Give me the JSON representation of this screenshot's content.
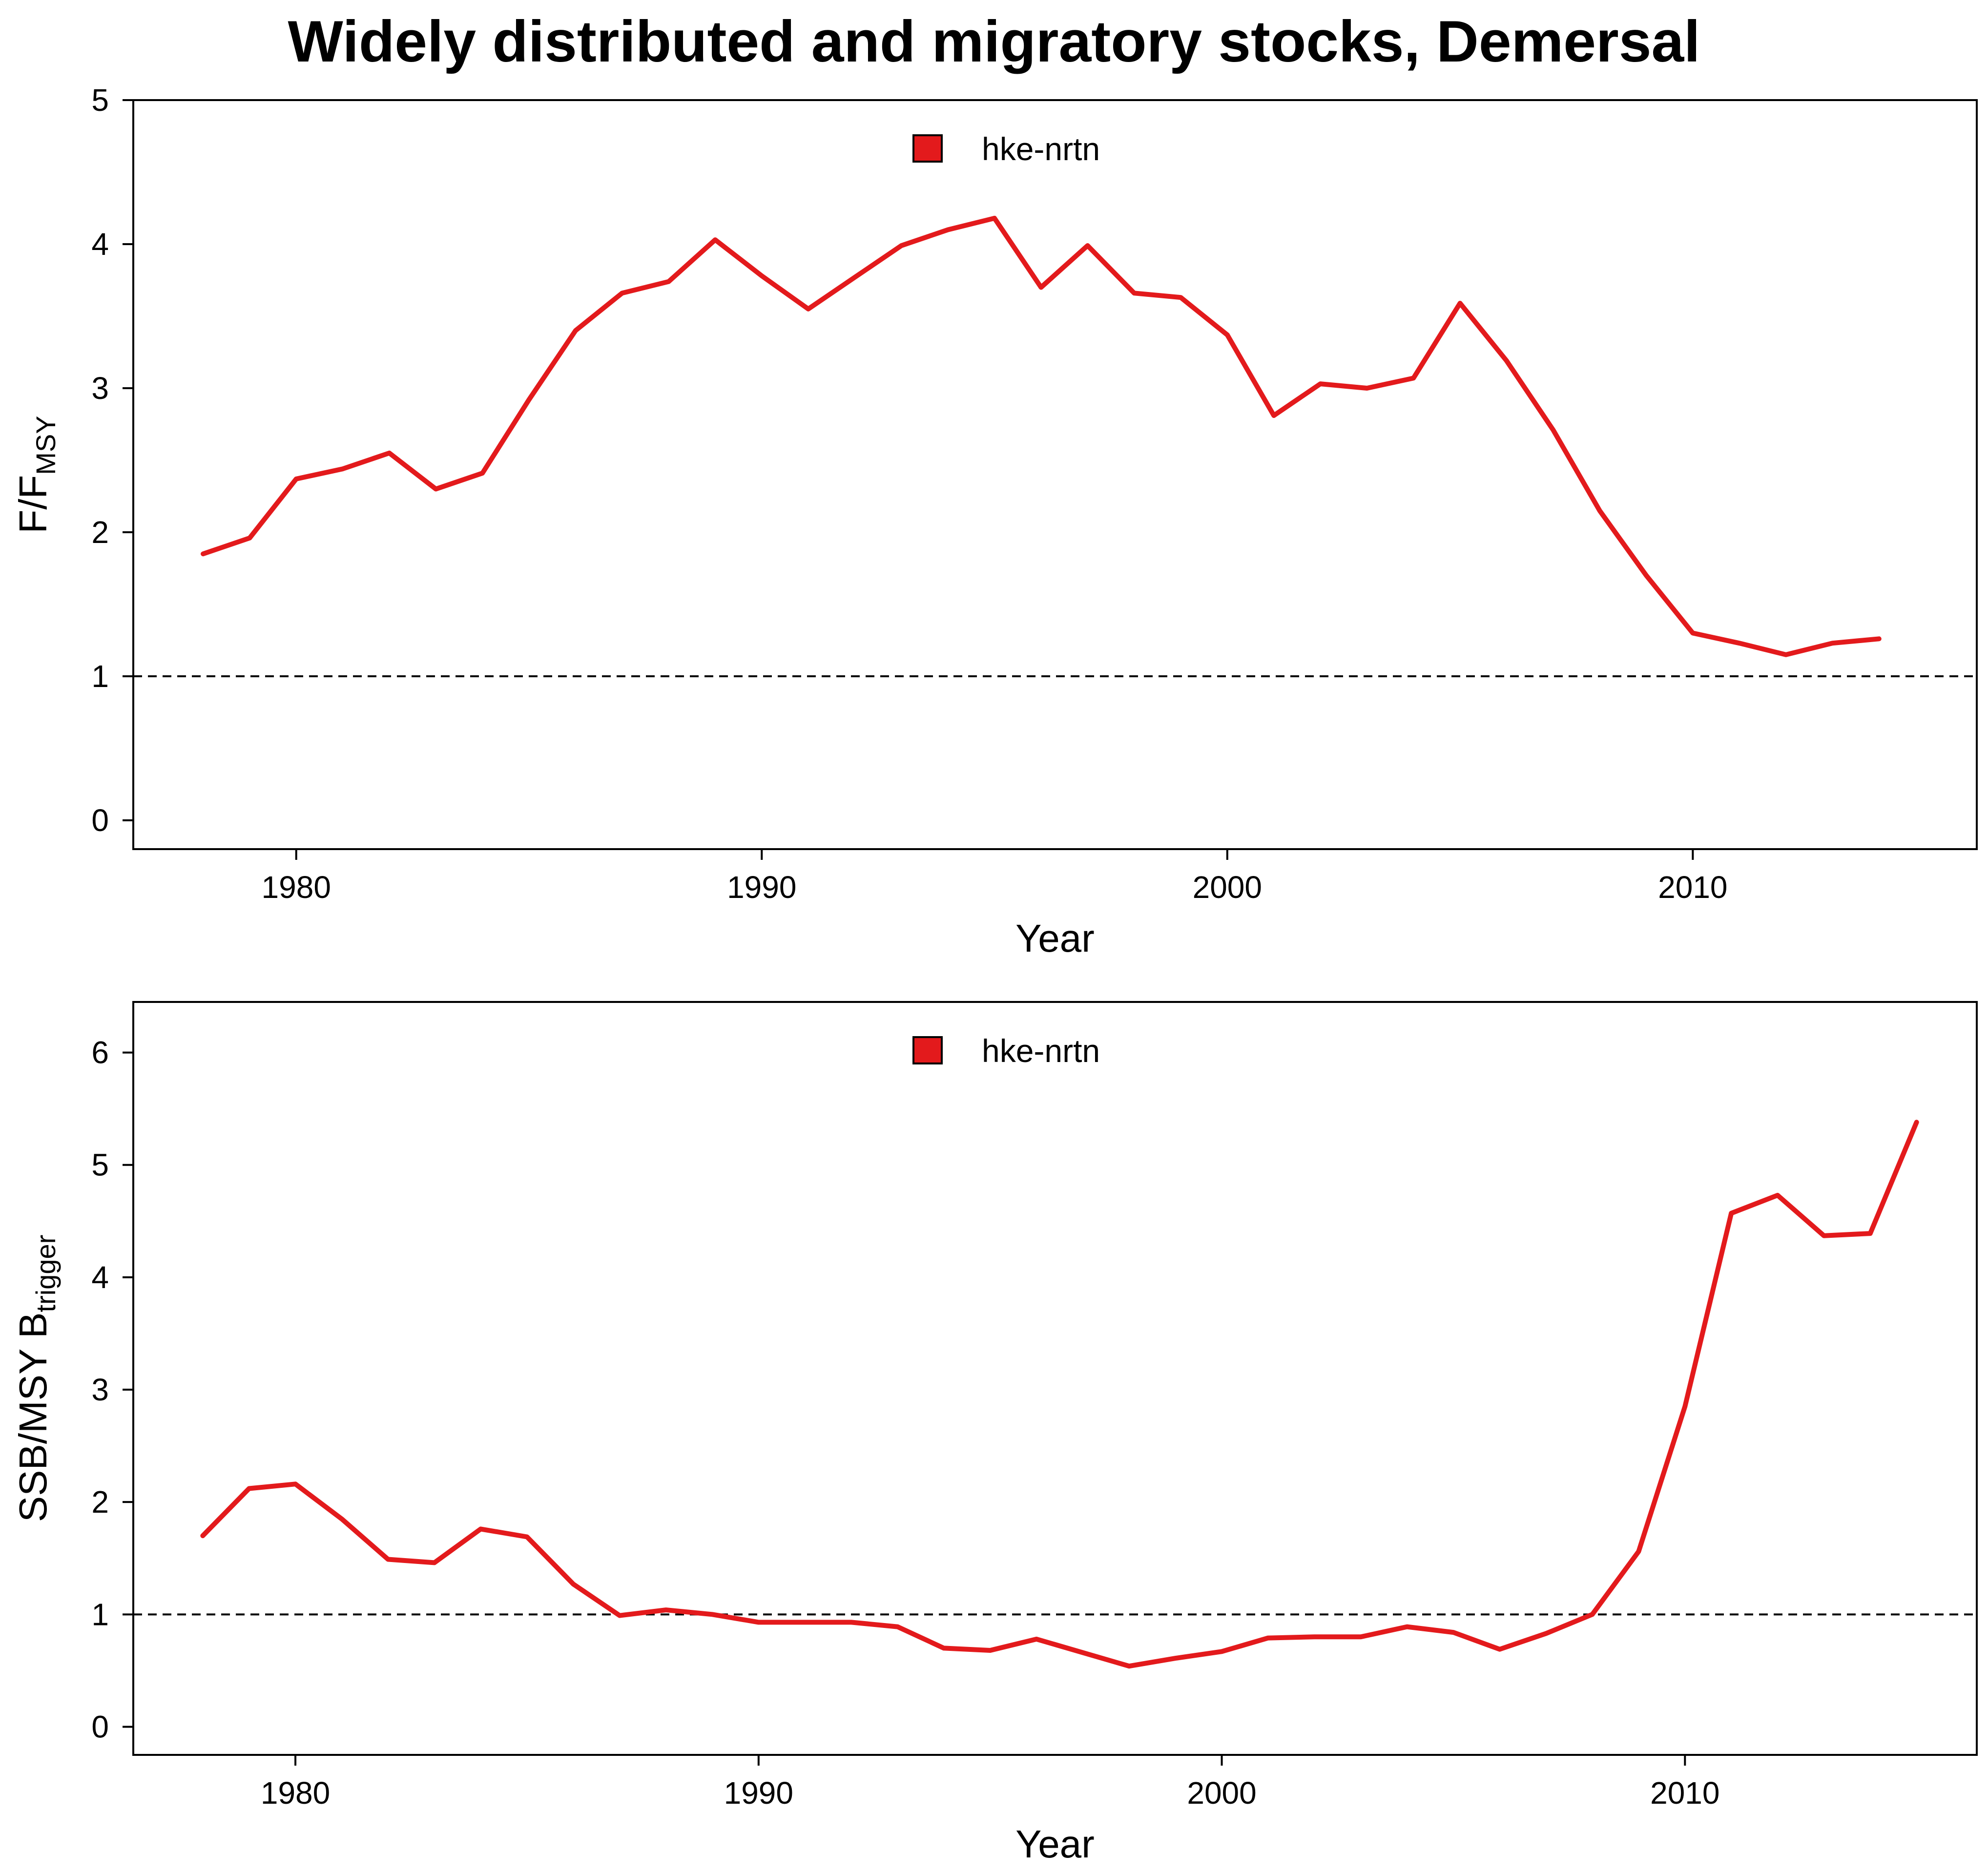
{
  "title": "Widely distributed and migratory stocks, Demersal",
  "colors": {
    "series": "#e31a1c",
    "reference_line": "#000000",
    "frame": "#000000"
  },
  "chart_data": [
    {
      "type": "line",
      "xlabel": "Year",
      "ylabel": {
        "main": "F/F",
        "sub": "MSY"
      },
      "xlim": [
        1976.5,
        2016.1
      ],
      "ylim": [
        -0.2,
        5
      ],
      "xticks": [
        1980,
        1990,
        2000,
        2010
      ],
      "yticks": [
        0,
        1,
        2,
        3,
        4,
        5
      ],
      "reference_line": {
        "y": 1,
        "style": "dashed"
      },
      "legend": {
        "position": "top-center"
      },
      "series": [
        {
          "name": "hke-nrtn",
          "color": "#e31a1c",
          "x": [
            1978,
            1979,
            1980,
            1981,
            1982,
            1983,
            1984,
            1985,
            1986,
            1987,
            1988,
            1989,
            1990,
            1991,
            1992,
            1993,
            1994,
            1995,
            1996,
            1997,
            1998,
            1999,
            2000,
            2001,
            2002,
            2003,
            2004,
            2005,
            2006,
            2007,
            2008,
            2009,
            2010,
            2011,
            2012,
            2013,
            2014
          ],
          "y": [
            1.85,
            1.96,
            2.37,
            2.44,
            2.55,
            2.3,
            2.41,
            2.92,
            3.4,
            3.66,
            3.74,
            4.03,
            3.78,
            3.55,
            3.77,
            3.99,
            4.1,
            4.18,
            3.7,
            3.99,
            3.66,
            3.63,
            3.37,
            2.81,
            3.03,
            3.0,
            3.07,
            3.59,
            3.19,
            2.71,
            2.15,
            1.7,
            1.3,
            1.23,
            1.15,
            1.23,
            1.26
          ]
        }
      ]
    },
    {
      "type": "line",
      "xlabel": "Year",
      "ylabel": {
        "main": "SSB/MSY B",
        "sub": "trigger"
      },
      "xlim": [
        1976.5,
        2016.3
      ],
      "ylim": [
        -0.25,
        6.45
      ],
      "xticks": [
        1980,
        1990,
        2000,
        2010
      ],
      "yticks": [
        0,
        1,
        2,
        3,
        4,
        5,
        6
      ],
      "reference_line": {
        "y": 1,
        "style": "dashed"
      },
      "legend": {
        "position": "top-center"
      },
      "series": [
        {
          "name": "hke-nrtn",
          "color": "#e31a1c",
          "x": [
            1978,
            1979,
            1980,
            1981,
            1982,
            1983,
            1984,
            1985,
            1986,
            1987,
            1988,
            1989,
            1990,
            1991,
            1992,
            1993,
            1994,
            1995,
            1996,
            1997,
            1998,
            1999,
            2000,
            2001,
            2002,
            2003,
            2004,
            2005,
            2006,
            2007,
            2008,
            2009,
            2010,
            2011,
            2012,
            2013,
            2014,
            2015
          ],
          "y": [
            1.7,
            2.12,
            2.16,
            1.85,
            1.49,
            1.46,
            1.76,
            1.69,
            1.27,
            0.99,
            1.04,
            1.0,
            0.93,
            0.93,
            0.93,
            0.89,
            0.7,
            0.68,
            0.78,
            0.66,
            0.54,
            0.61,
            0.67,
            0.79,
            0.8,
            0.8,
            0.89,
            0.84,
            0.69,
            0.83,
            1.0,
            1.56,
            2.85,
            4.57,
            4.73,
            4.37,
            4.39,
            5.38
          ]
        }
      ]
    }
  ]
}
